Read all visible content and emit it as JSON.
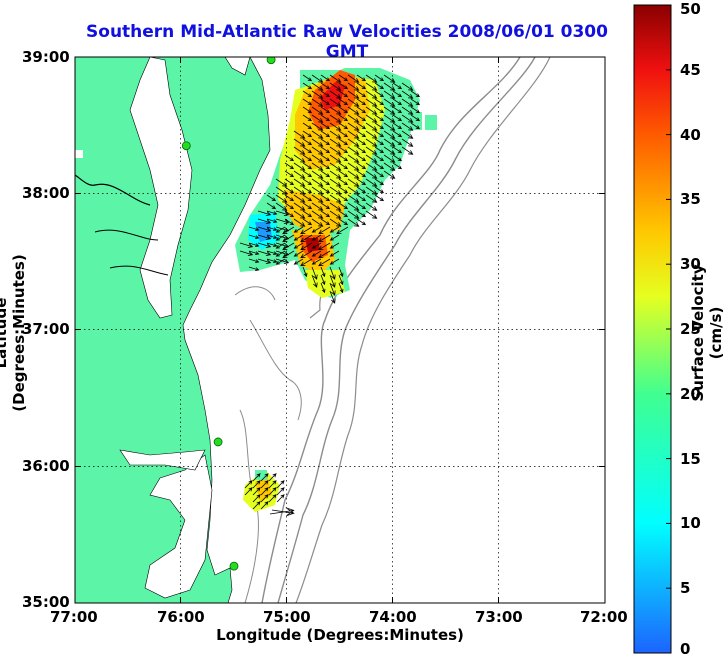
{
  "title": "Southern Mid-Atlantic Raw Velocities 2008/06/01 0300 GMT",
  "xlabel": "Longitude (Degrees:Minutes)",
  "ylabel": "Latitude (Degrees:Minutes)",
  "colorbar": {
    "label": "Surface Velocity (cm/s)",
    "min": 0,
    "max": 50,
    "ticks": [
      "0",
      "5",
      "10",
      "15",
      "20",
      "25",
      "30",
      "35",
      "40",
      "45",
      "50"
    ]
  },
  "map": {
    "lon_range": [
      -77,
      -72
    ],
    "lat_range": [
      35,
      39
    ],
    "x_ticks": [
      "77:00",
      "76:00",
      "75:00",
      "74:00",
      "73:00",
      "72:00"
    ],
    "y_ticks": [
      "39:00",
      "38:00",
      "37:00",
      "36:00",
      "35:00"
    ],
    "grid": "dotted",
    "land_color": "#5cf5a8",
    "water_color": "#ffffff",
    "bathymetry_color": "#8c8c8c"
  },
  "stations": [
    {
      "lon": -75.15,
      "lat": 38.98
    },
    {
      "lon": -75.95,
      "lat": 38.35
    },
    {
      "lon": -75.65,
      "lat": 36.18
    },
    {
      "lon": -75.5,
      "lat": 35.27
    }
  ]
}
